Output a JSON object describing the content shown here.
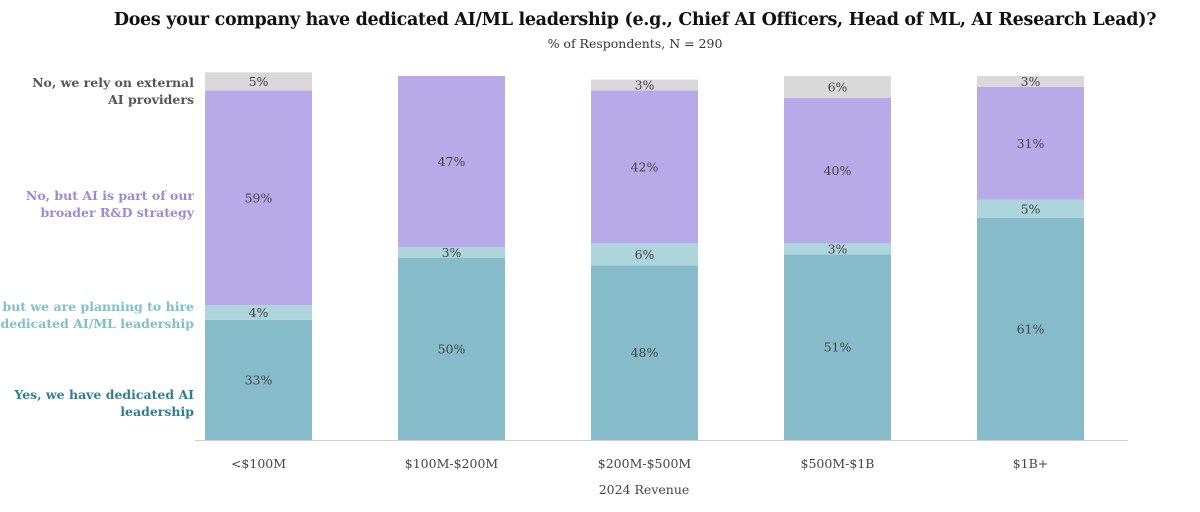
{
  "chart_data": {
    "type": "bar",
    "stacked": true,
    "title": "Does your company have dedicated AI/ML leadership (e.g., Chief AI Officers, Head of ML, AI Research Lead)?",
    "subtitle": "% of Respondents, N = 290",
    "xlabel": "2024 Revenue",
    "ylabel": "",
    "ylim": [
      0,
      100
    ],
    "categories": [
      "<$100M",
      "$100M-$200M",
      "$200M-$500M",
      "$500M-$1B",
      "$1B+"
    ],
    "series": [
      {
        "name": "Yes, we have dedicated AI leadership",
        "label_lines": [
          "Yes, we have dedicated AI",
          "leadership"
        ],
        "color": "#86bcc9",
        "legend_color": "#2e7f91",
        "values": [
          33,
          50,
          48,
          51,
          61
        ]
      },
      {
        "name": "No, but we are planning to hire dedicated AI/ML leadership",
        "label_lines": [
          "No, but we are planning to hire",
          "dedicated AI/ML leadership"
        ],
        "color": "#aed5dc",
        "legend_color": "#7fc0cd",
        "values": [
          4,
          3,
          6,
          3,
          5
        ]
      },
      {
        "name": "No, but AI is part of our broader R&D strategy",
        "label_lines": [
          "No, but AI is part of our",
          "broader R&D strategy"
        ],
        "color": "#b8aae8",
        "legend_color": "#9a8ad8",
        "values": [
          59,
          47,
          42,
          40,
          31
        ]
      },
      {
        "name": "No, we rely on external AI providers",
        "label_lines": [
          "No, we rely on external",
          "AI providers"
        ],
        "color": "#d9d9d9",
        "legend_color": "#555555",
        "values": [
          5,
          0,
          3,
          6,
          3
        ]
      }
    ],
    "value_suffix": "%"
  }
}
